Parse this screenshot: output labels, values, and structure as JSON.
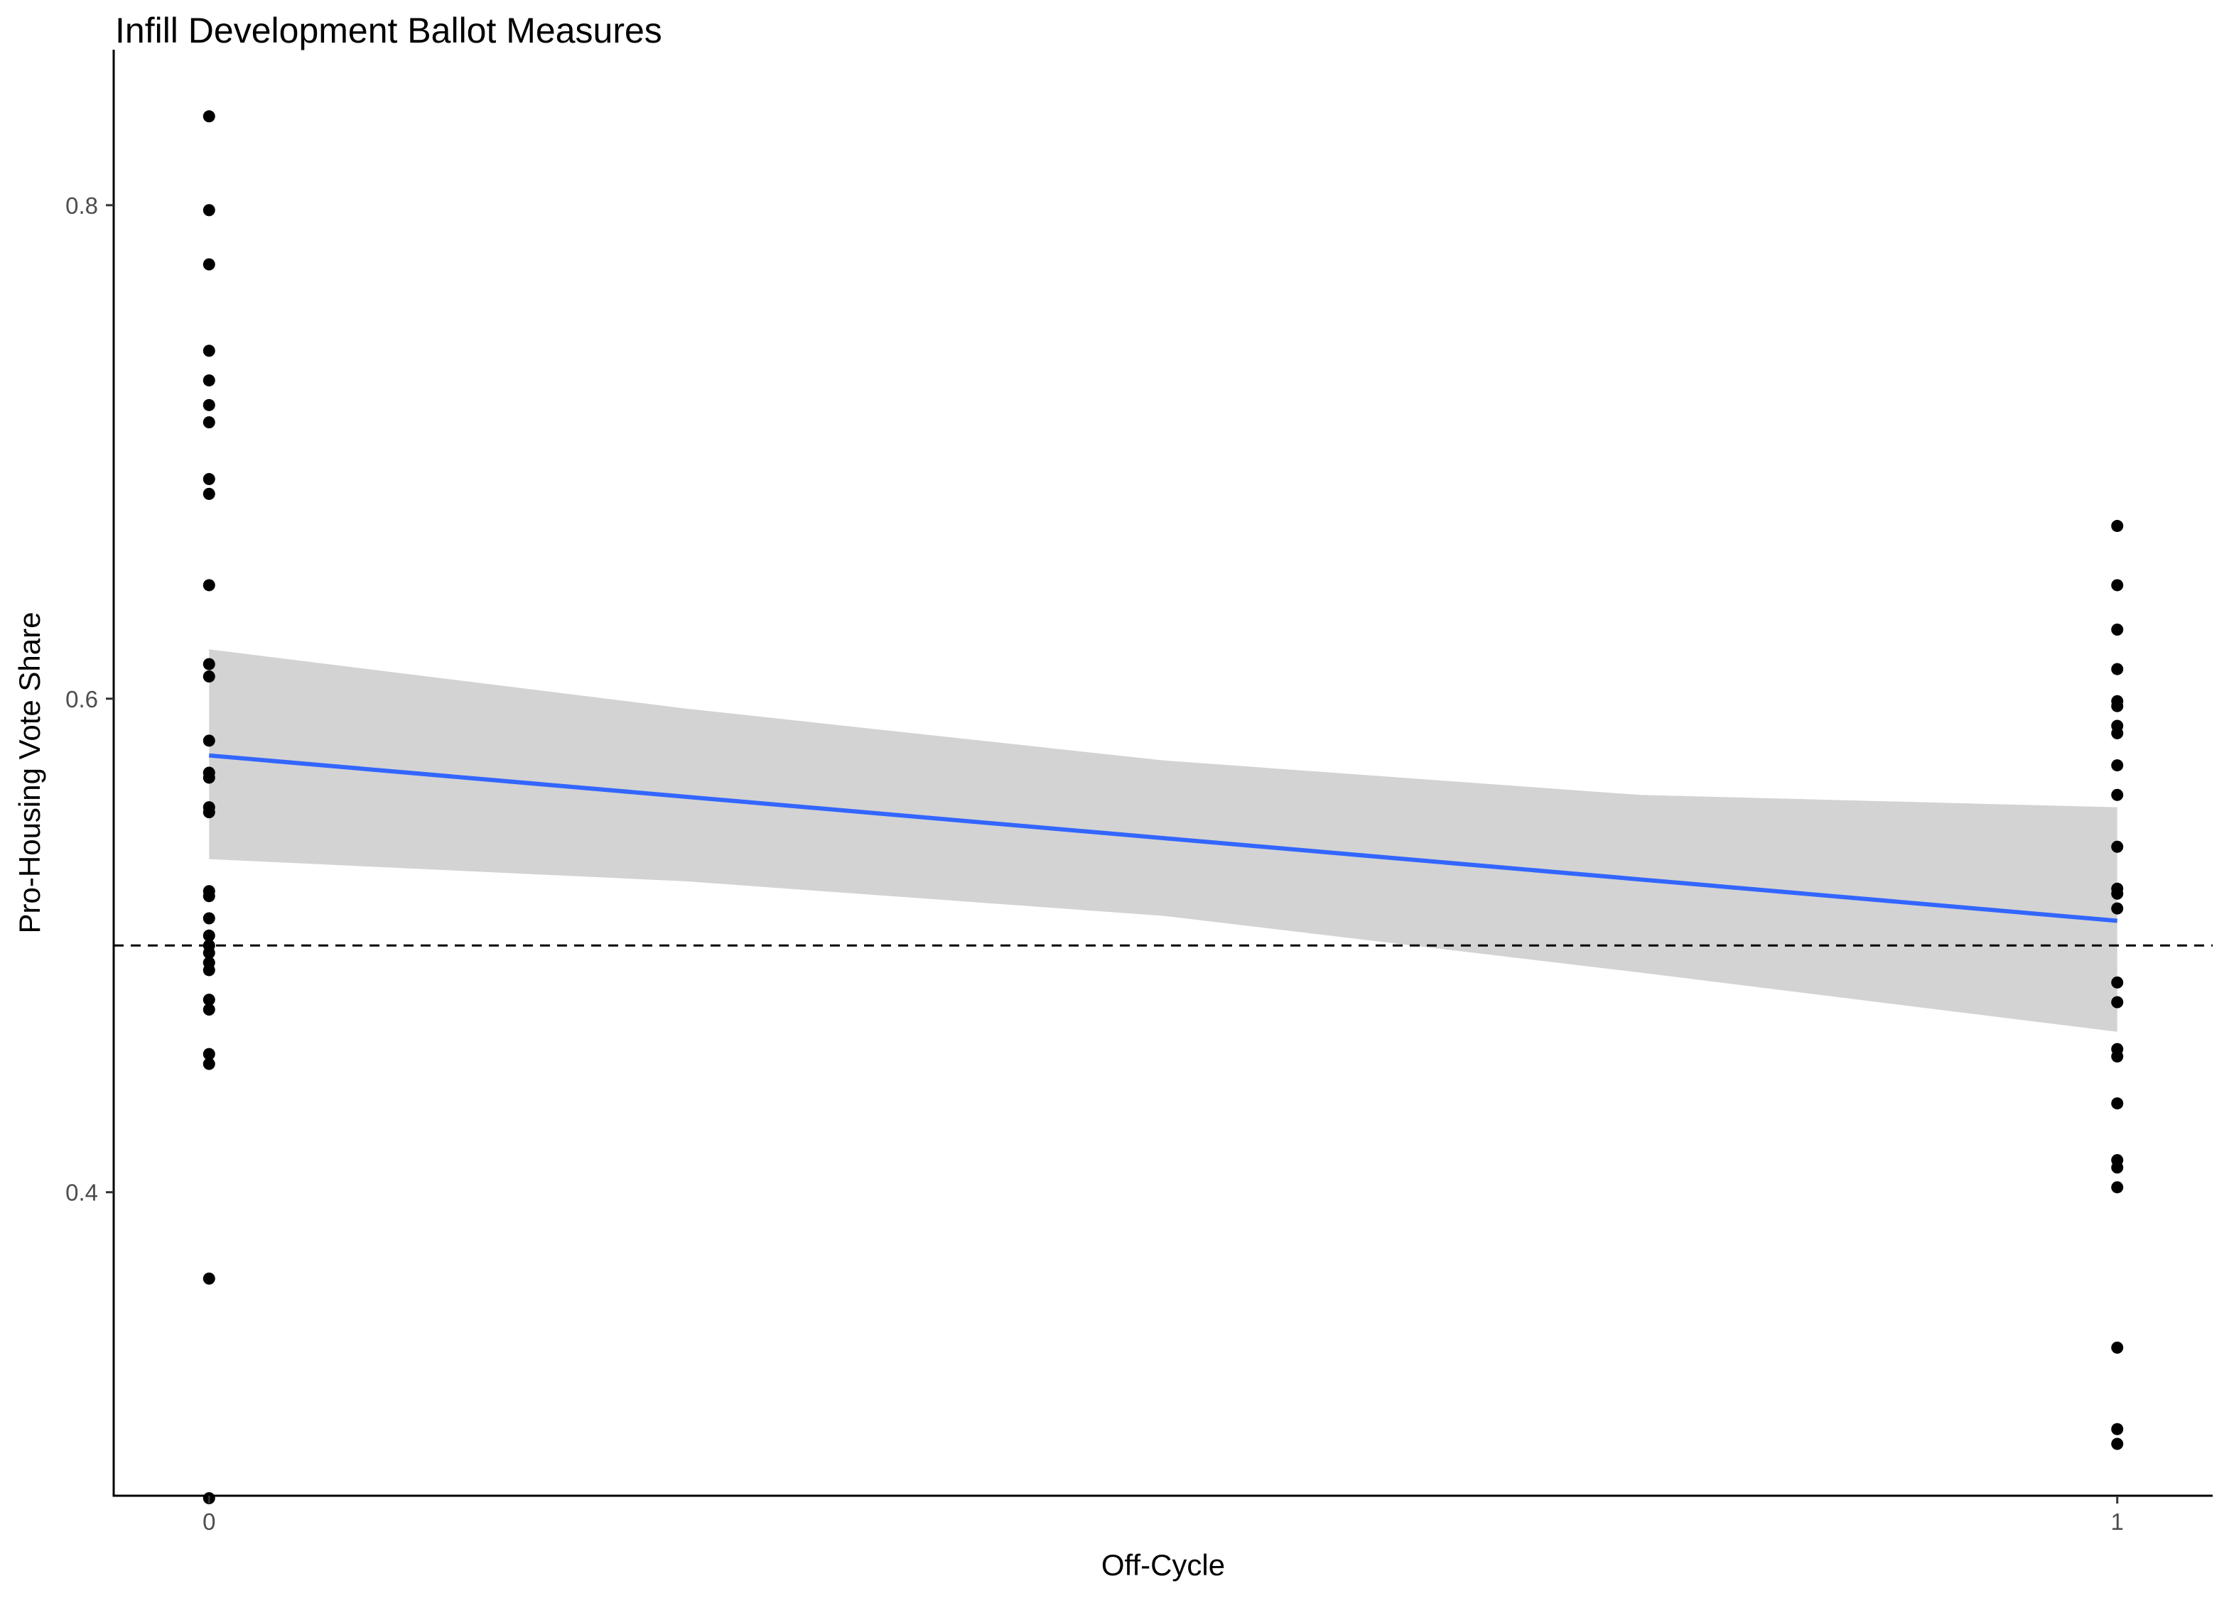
{
  "chart_data": {
    "type": "scatter",
    "title": "Infill Development Ballot Measures",
    "xlabel": "Off-Cycle",
    "ylabel": "Pro-Housing Vote Share",
    "x_ticks": [
      0,
      1
    ],
    "y_ticks": [
      0.4,
      0.6,
      0.8
    ],
    "xlim": [
      -0.05,
      1.05
    ],
    "ylim": [
      0.277,
      0.863
    ],
    "grid": false,
    "reference_line": {
      "y": 0.5,
      "style": "dashed",
      "color": "#000000"
    },
    "points": [
      {
        "x": 0,
        "y": 0.836
      },
      {
        "x": 0,
        "y": 0.798
      },
      {
        "x": 0,
        "y": 0.776
      },
      {
        "x": 0,
        "y": 0.741
      },
      {
        "x": 0,
        "y": 0.729
      },
      {
        "x": 0,
        "y": 0.719
      },
      {
        "x": 0,
        "y": 0.712
      },
      {
        "x": 0,
        "y": 0.689
      },
      {
        "x": 0,
        "y": 0.683
      },
      {
        "x": 0,
        "y": 0.646
      },
      {
        "x": 0,
        "y": 0.614
      },
      {
        "x": 0,
        "y": 0.609
      },
      {
        "x": 0,
        "y": 0.583
      },
      {
        "x": 0,
        "y": 0.57
      },
      {
        "x": 0,
        "y": 0.568
      },
      {
        "x": 0,
        "y": 0.556
      },
      {
        "x": 0,
        "y": 0.554
      },
      {
        "x": 0,
        "y": 0.522
      },
      {
        "x": 0,
        "y": 0.52
      },
      {
        "x": 0,
        "y": 0.511
      },
      {
        "x": 0,
        "y": 0.504
      },
      {
        "x": 0,
        "y": 0.5
      },
      {
        "x": 0,
        "y": 0.497
      },
      {
        "x": 0,
        "y": 0.493
      },
      {
        "x": 0,
        "y": 0.49
      },
      {
        "x": 0,
        "y": 0.478
      },
      {
        "x": 0,
        "y": 0.474
      },
      {
        "x": 0,
        "y": 0.456
      },
      {
        "x": 0,
        "y": 0.452
      },
      {
        "x": 0,
        "y": 0.365
      },
      {
        "x": 0,
        "y": 0.276
      },
      {
        "x": 1,
        "y": 0.67
      },
      {
        "x": 1,
        "y": 0.646
      },
      {
        "x": 1,
        "y": 0.628
      },
      {
        "x": 1,
        "y": 0.612
      },
      {
        "x": 1,
        "y": 0.599
      },
      {
        "x": 1,
        "y": 0.597
      },
      {
        "x": 1,
        "y": 0.589
      },
      {
        "x": 1,
        "y": 0.586
      },
      {
        "x": 1,
        "y": 0.573
      },
      {
        "x": 1,
        "y": 0.561
      },
      {
        "x": 1,
        "y": 0.54
      },
      {
        "x": 1,
        "y": 0.523
      },
      {
        "x": 1,
        "y": 0.521
      },
      {
        "x": 1,
        "y": 0.515
      },
      {
        "x": 1,
        "y": 0.485
      },
      {
        "x": 1,
        "y": 0.477
      },
      {
        "x": 1,
        "y": 0.458
      },
      {
        "x": 1,
        "y": 0.455
      },
      {
        "x": 1,
        "y": 0.436
      },
      {
        "x": 1,
        "y": 0.413
      },
      {
        "x": 1,
        "y": 0.41
      },
      {
        "x": 1,
        "y": 0.402
      },
      {
        "x": 1,
        "y": 0.337
      },
      {
        "x": 1,
        "y": 0.304
      },
      {
        "x": 1,
        "y": 0.298
      }
    ],
    "fit": {
      "method": "linear",
      "color": "#3366FF",
      "line": [
        {
          "x": 0,
          "y": 0.577
        },
        {
          "x": 1,
          "y": 0.51
        }
      ],
      "ci_color": "#d3d3d3",
      "ci_upper": [
        {
          "x": 0.0,
          "y": 0.62
        },
        {
          "x": 0.25,
          "y": 0.596
        },
        {
          "x": 0.5,
          "y": 0.575
        },
        {
          "x": 0.75,
          "y": 0.561
        },
        {
          "x": 1.0,
          "y": 0.556
        }
      ],
      "ci_lower": [
        {
          "x": 0.0,
          "y": 0.535
        },
        {
          "x": 0.25,
          "y": 0.526
        },
        {
          "x": 0.5,
          "y": 0.512
        },
        {
          "x": 0.75,
          "y": 0.489
        },
        {
          "x": 1.0,
          "y": 0.465
        }
      ]
    }
  }
}
